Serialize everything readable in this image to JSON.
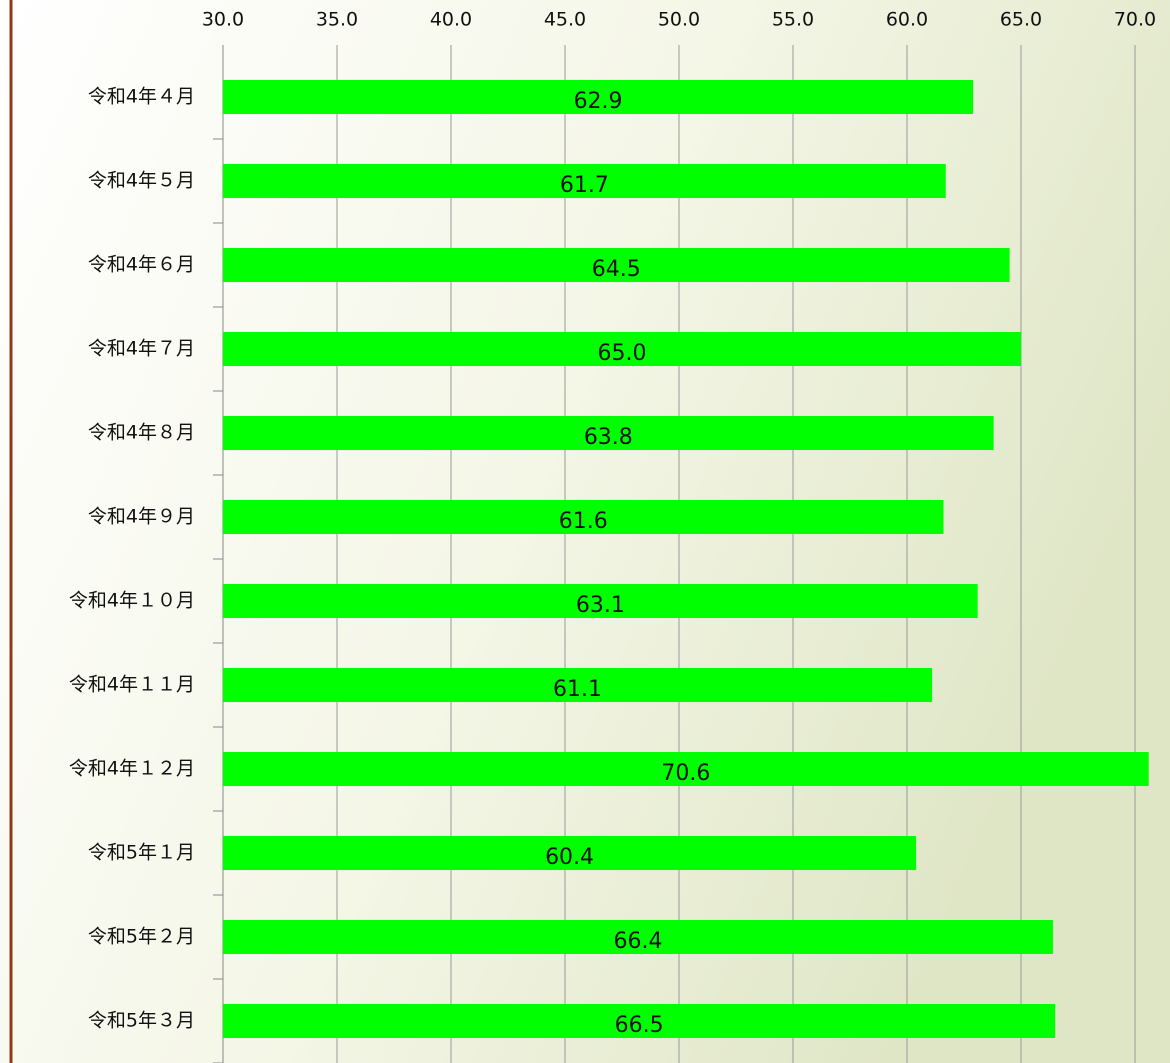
{
  "chart_data": {
    "type": "bar",
    "orientation": "horizontal",
    "categories": [
      "令和4年４月",
      "令和4年５月",
      "令和4年６月",
      "令和4年７月",
      "令和4年８月",
      "令和4年９月",
      "令和4年１０月",
      "令和4年１１月",
      "令和4年１２月",
      "令和5年１月",
      "令和5年２月",
      "令和5年３月"
    ],
    "values": [
      62.9,
      61.7,
      64.5,
      65.0,
      63.8,
      61.6,
      63.1,
      61.1,
      70.6,
      60.4,
      66.4,
      66.5
    ],
    "value_labels": [
      "62.9",
      "61.7",
      "64.5",
      "65.0",
      "63.8",
      "61.6",
      "63.1",
      "61.1",
      "70.6",
      "60.4",
      "66.4",
      "66.5"
    ],
    "color": "#00ff00",
    "xlim": [
      30,
      70
    ],
    "xticks": [
      {
        "value": 30,
        "label": "30.0"
      },
      {
        "value": 35,
        "label": "35.0"
      },
      {
        "value": 40,
        "label": "40.0"
      },
      {
        "value": 45,
        "label": "45.0"
      },
      {
        "value": 50,
        "label": "50.0"
      },
      {
        "value": 55,
        "label": "55.0"
      },
      {
        "value": 60,
        "label": "60.0"
      },
      {
        "value": 65,
        "label": "65.0"
      },
      {
        "value": 70,
        "label": "70.0"
      }
    ],
    "grid": true
  }
}
